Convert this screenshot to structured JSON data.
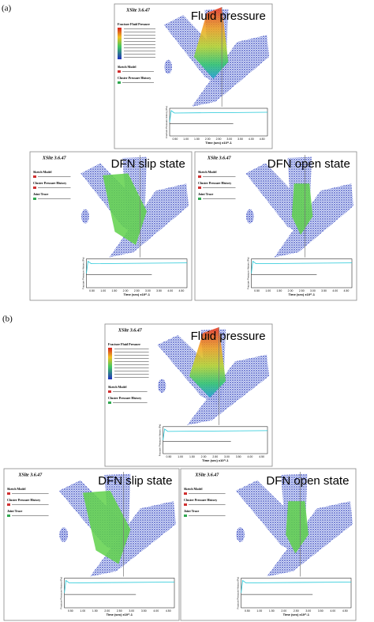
{
  "panels": [
    {
      "label": "(a)",
      "views": [
        {
          "title": "Fluid pressure",
          "software": "XSite 3.6.47",
          "legend": [
            "Fracture Fluid Pressure",
            "Sketch Model",
            "Cluster Pressure History"
          ],
          "y_axis": "Fracture Pressure History (Pa)",
          "x_axis": "Time (sec) x10^-1",
          "x_ticks": [
            "0.50",
            "1.00",
            "1.50",
            "2.00",
            "2.50",
            "3.00",
            "3.50",
            "4.00",
            "4.50"
          ]
        },
        {
          "title": "DFN slip state",
          "software": "XSite 3.6.47",
          "legend": [
            "Sketch Model",
            "Cluster Pressure History",
            "Joint Trace"
          ],
          "y_axis": "Fracture Pressure History (Pa)",
          "x_axis": "Time (sec) x10^-1",
          "x_ticks": [
            "0.50",
            "1.00",
            "1.50",
            "2.00",
            "2.50",
            "3.00",
            "3.50",
            "4.00",
            "4.50"
          ]
        },
        {
          "title": "DFN open state",
          "software": "XSite 3.6.47",
          "legend": [
            "Sketch Model",
            "Cluster Pressure History",
            "Joint Trace"
          ],
          "y_axis": "Fracture Pressure History (Pa)",
          "x_axis": "Time (sec) x10^-1",
          "x_ticks": [
            "0.50",
            "1.00",
            "1.50",
            "2.00",
            "2.50",
            "3.00",
            "3.50",
            "4.00",
            "4.50"
          ]
        }
      ]
    },
    {
      "label": "(b)",
      "views": [
        {
          "title": "Fluid pressure",
          "software": "XSite 3.6.47",
          "legend": [
            "Fracture Fluid Pressure",
            "Sketch Model",
            "Cluster Pressure History"
          ],
          "y_axis": "Fracture Pressure History (Pa)",
          "x_axis": "Time (sec) x10^-1",
          "x_ticks": [
            "0.50",
            "1.00",
            "1.50",
            "2.00",
            "2.50",
            "3.00",
            "3.50",
            "4.00",
            "4.50"
          ]
        },
        {
          "title": "DFN slip state",
          "software": "XSite 3.6.47",
          "legend": [
            "Sketch Model",
            "Cluster Pressure History",
            "Joint Trace"
          ],
          "y_axis": "Fracture Pressure History (Pa)",
          "x_axis": "Time (sec) x10^-1",
          "x_ticks": [
            "0.50",
            "1.00",
            "1.50",
            "2.00",
            "2.50",
            "3.00",
            "3.50",
            "4.00",
            "4.50"
          ]
        },
        {
          "title": "DFN open state",
          "software": "XSite 3.6.47",
          "legend": [
            "Sketch Model",
            "Cluster Pressure History",
            "Joint Trace"
          ],
          "y_axis": "Fracture Pressure History (Pa)",
          "x_axis": "Time (sec) x10^-1",
          "x_ticks": [
            "0.50",
            "1.00",
            "1.50",
            "2.00",
            "2.50",
            "3.00",
            "3.50",
            "4.00",
            "4.50"
          ]
        }
      ]
    }
  ]
}
